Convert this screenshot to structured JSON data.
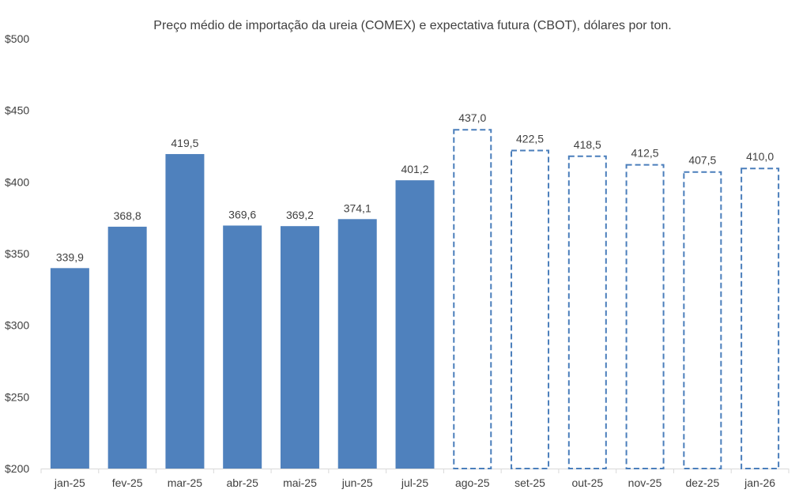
{
  "chart_data": {
    "type": "bar",
    "title": "Preço médio de importação da ureia (COMEX) e expectativa futura (CBOT), dólares por ton.",
    "xlabel": "",
    "ylabel": "",
    "ylim": [
      200,
      500
    ],
    "yticks": [
      200,
      250,
      300,
      350,
      400,
      450,
      500
    ],
    "ytick_labels": [
      "$200",
      "$250",
      "$300",
      "$350",
      "$400",
      "$450",
      "$500"
    ],
    "grid": false,
    "categories": [
      "jan-25",
      "fev-25",
      "mar-25",
      "abr-25",
      "mai-25",
      "jun-25",
      "jul-25",
      "ago-25",
      "set-25",
      "out-25",
      "nov-25",
      "dez-25",
      "jan-26"
    ],
    "series": [
      {
        "name": "COMEX",
        "style": "solid",
        "color": "#4F81BD",
        "values": [
          339.9,
          368.8,
          419.5,
          369.6,
          369.2,
          374.1,
          401.2,
          null,
          null,
          null,
          null,
          null,
          null
        ],
        "labels": [
          "339,9",
          "368,8",
          "419,5",
          "369,6",
          "369,2",
          "374,1",
          "401,2",
          null,
          null,
          null,
          null,
          null,
          null
        ]
      },
      {
        "name": "CBOT",
        "style": "dashed",
        "color": "#4A7EBB",
        "values": [
          null,
          null,
          null,
          null,
          null,
          null,
          null,
          437.0,
          422.5,
          418.5,
          412.5,
          407.5,
          410.0
        ],
        "labels": [
          null,
          null,
          null,
          null,
          null,
          null,
          null,
          "437,0",
          "422,5",
          "418,5",
          "412,5",
          "407,5",
          "410,0"
        ]
      }
    ]
  }
}
